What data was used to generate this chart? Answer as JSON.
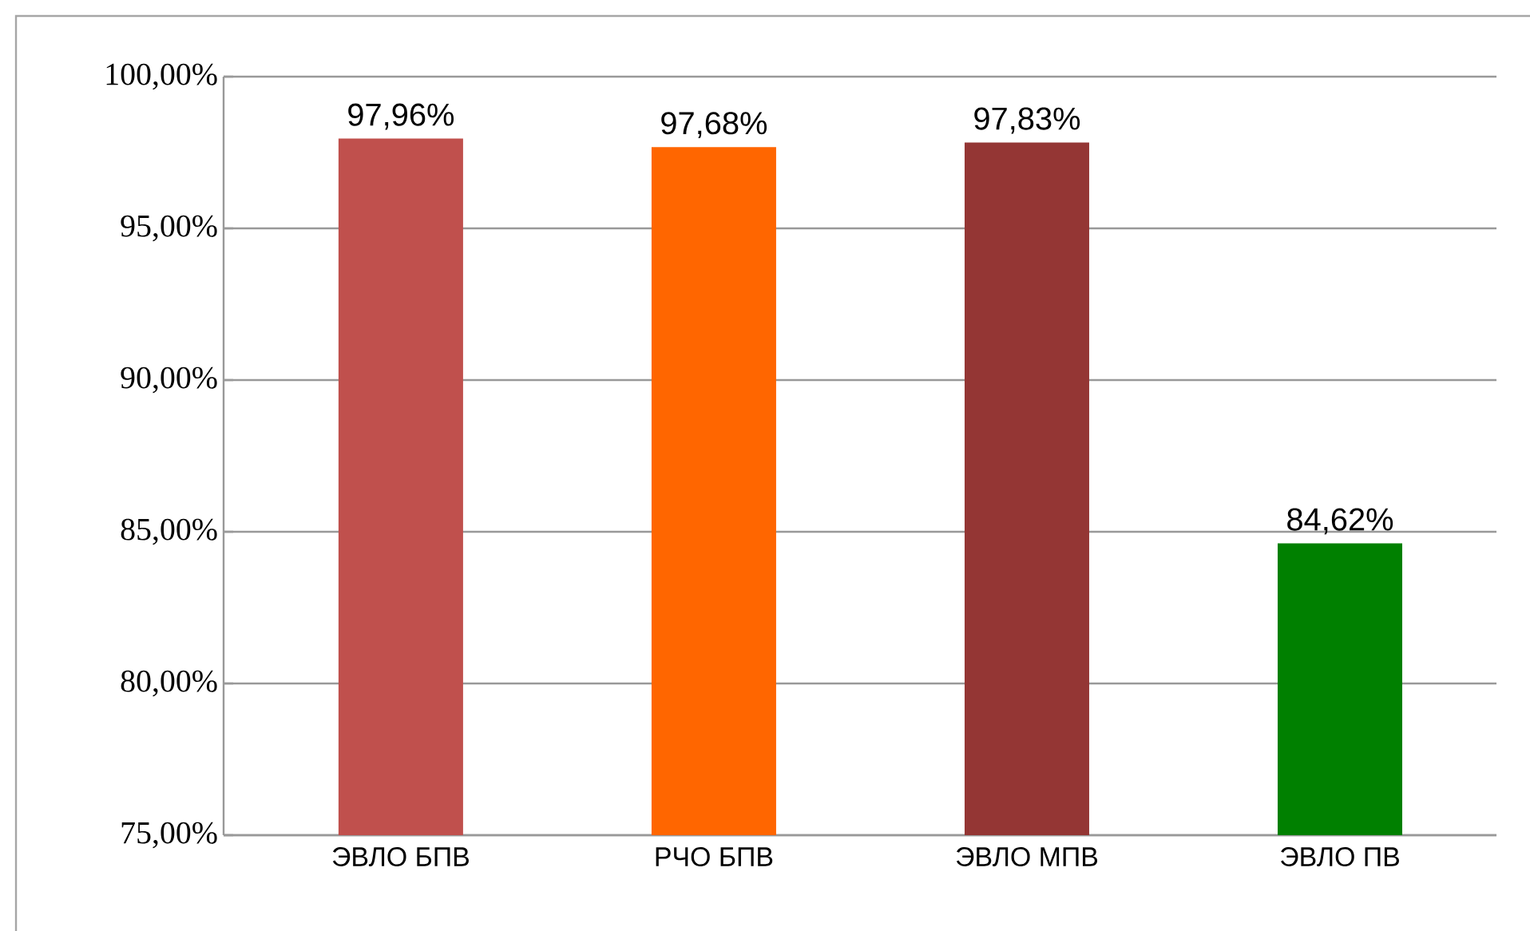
{
  "chart_data": {
    "type": "bar",
    "categories": [
      "ЭВЛО БПВ",
      "РЧО БПВ",
      "ЭВЛО МПВ",
      "ЭВЛО ПВ"
    ],
    "values": [
      97.96,
      97.68,
      97.83,
      84.62
    ],
    "colors": [
      "#c0504d",
      "#ff6600",
      "#943634",
      "#008000"
    ],
    "value_labels": [
      "97,96%",
      "97,68%",
      "97,83%",
      "84,62%"
    ],
    "ylim": [
      75,
      100
    ],
    "yticks": [
      {
        "value": 75,
        "label": "75,00%"
      },
      {
        "value": 80,
        "label": "80,00%"
      },
      {
        "value": 85,
        "label": "85,00%"
      },
      {
        "value": 90,
        "label": "90,00%"
      },
      {
        "value": 95,
        "label": "95,00%"
      },
      {
        "value": 100,
        "label": "100,00%"
      }
    ],
    "grid": "y"
  }
}
